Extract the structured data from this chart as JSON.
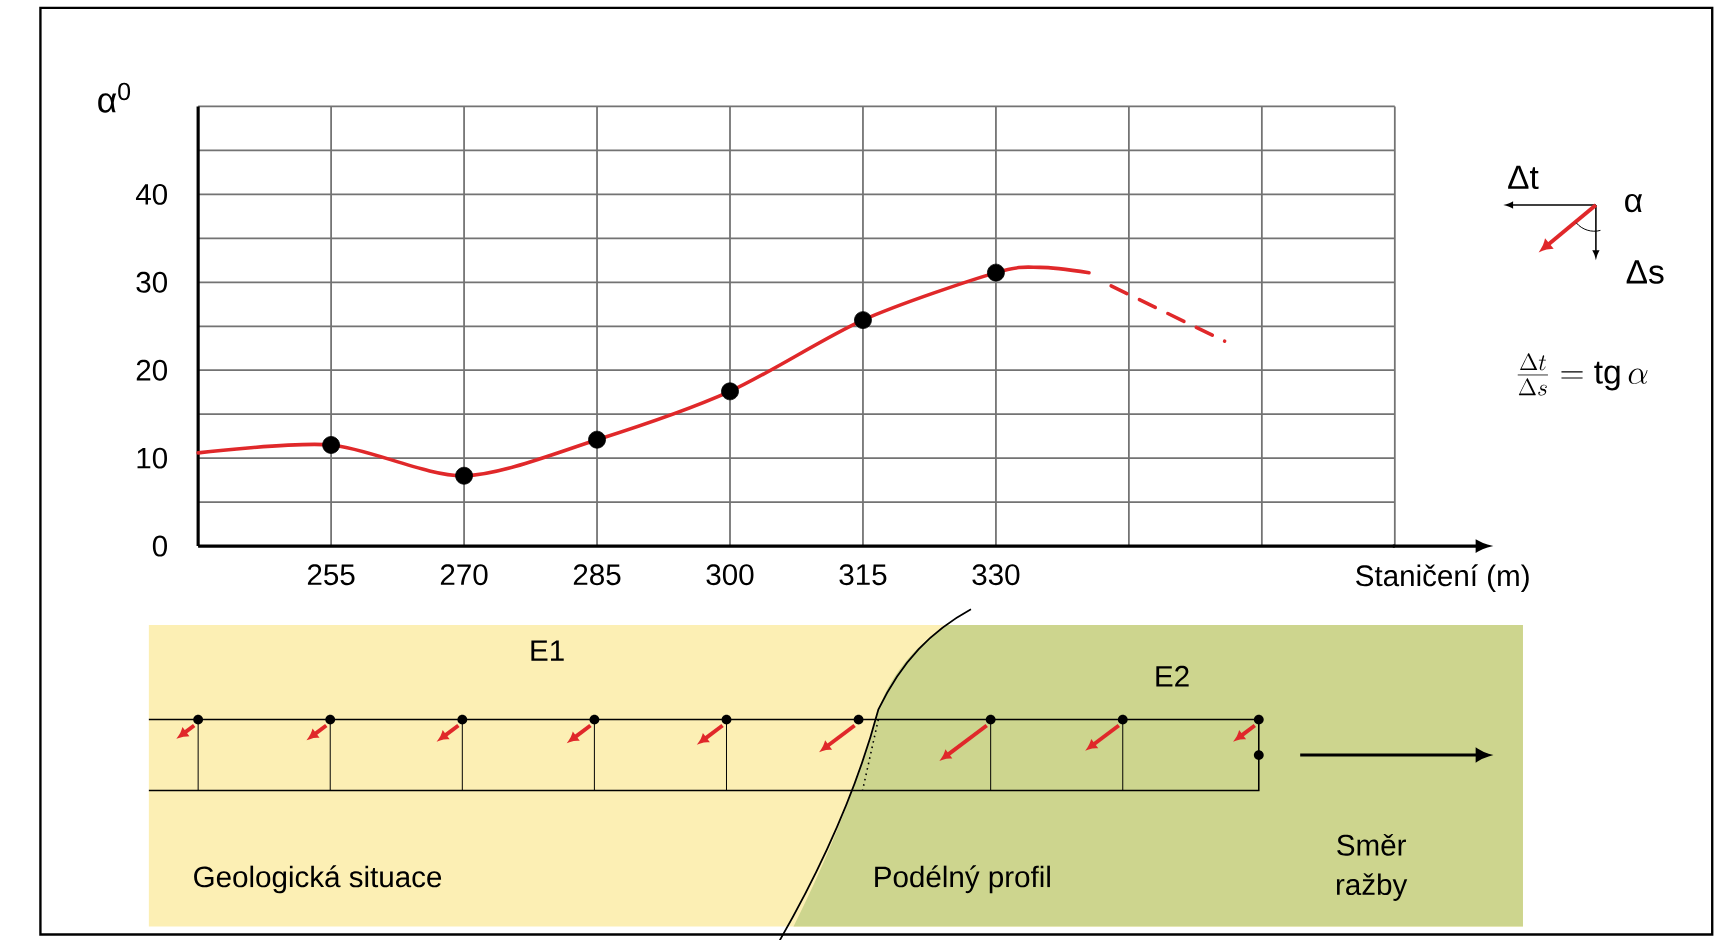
{
  "chart_data": {
    "type": "line",
    "xlabel": "Staničení (m)",
    "ylabel": "α$^{0}$",
    "xlim": [
      240,
      375
    ],
    "ylim": [
      0,
      50
    ],
    "xticks": [
      255,
      270,
      285,
      300,
      315,
      330,
      {
        "value": 345,
        "label": null
      },
      {
        "value": 360,
        "label": null
      },
      {
        "value": 375,
        "label": null
      }
    ],
    "yticks": [
      0,
      {
        "value": 5,
        "label": null
      },
      10,
      {
        "value": 15,
        "label": null
      },
      20,
      {
        "value": 25,
        "label": null
      },
      30,
      {
        "value": 35,
        "label": null
      },
      40,
      {
        "value": 45,
        "label": null
      },
      {
        "value": 50,
        "label": null
      }
    ],
    "grid": true,
    "series": [
      {
        "color": "#e0282a",
        "line_style": "solid",
        "x": [
          240,
          255,
          270,
          285,
          300,
          315,
          330,
          335,
          340.5
        ],
        "values": [
          10.6,
          11.5,
          8,
          12.1,
          17.6,
          25.7,
          31.1,
          31.7,
          31.1
        ]
      },
      {
        "color": "#e0282a",
        "line_style": "dashed",
        "x": [
          343,
          355.8
        ],
        "values": [
          29.6,
          23.3
        ]
      },
      {
        "type": "scatter",
        "color": "#000000",
        "marker": "circle",
        "x": [
          255,
          270,
          285,
          300,
          315,
          330
        ],
        "values": [
          11.5,
          8,
          12.1,
          17.6,
          25.7,
          31.1
        ]
      }
    ],
    "annotations": [
      "Δt",
      "α",
      "Δs",
      "\\frac{\\Delta t}{\\Delta s} = \\mathrm{tg}\\,\\alpha",
      "E1",
      "E2",
      "Geologická situace",
      "Podélný profil",
      "Směr ražby"
    ]
  }
}
